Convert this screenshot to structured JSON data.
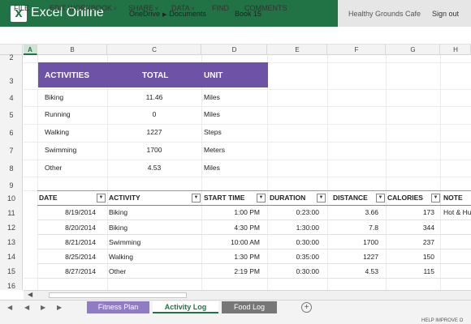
{
  "header": {
    "app_icon": "X",
    "app_title": "Excel Online",
    "breadcrumb": [
      "OneDrive",
      "Documents"
    ],
    "book_name": "Book 15",
    "account_name": "Healthy Grounds Cafe",
    "sign_out": "Sign out",
    "brand_color": "#217346"
  },
  "menu": {
    "file": "FILE",
    "edit": "EDIT WORKBOOK",
    "share": "SHARE",
    "data": "DATA",
    "find": "FIND",
    "comments": "COMMENTS"
  },
  "columns": [
    "A",
    "B",
    "C",
    "D",
    "E",
    "F",
    "G",
    "H"
  ],
  "rows": [
    "2",
    "3",
    "4",
    "5",
    "6",
    "7",
    "8",
    "9",
    "10",
    "11",
    "12",
    "13",
    "14",
    "15",
    "16"
  ],
  "summary": {
    "header_color": "#6d52a6",
    "headers": {
      "activities": "ACTIVITIES",
      "total": "TOTAL",
      "unit": "UNIT"
    },
    "items": [
      {
        "activity": "Biking",
        "total": "11.46",
        "unit": "Miles"
      },
      {
        "activity": "Running",
        "total": "0",
        "unit": "Miles"
      },
      {
        "activity": "Walking",
        "total": "1227",
        "unit": "Steps"
      },
      {
        "activity": "Swimming",
        "total": "1700",
        "unit": "Meters"
      },
      {
        "activity": "Other",
        "total": "4.53",
        "unit": "Miles"
      }
    ]
  },
  "log": {
    "headers": {
      "date": "DATE",
      "activity": "ACTIVITY",
      "start": "START TIME",
      "duration": "DURATION",
      "distance": "DISTANCE",
      "calories": "CALORIES",
      "note": "NOTE"
    },
    "rows": [
      {
        "date": "8/19/2014",
        "activity": "Biking",
        "start": "1:00 PM",
        "duration": "0:23:00",
        "distance": "3.66",
        "calories": "173",
        "note": "Hot & Hu"
      },
      {
        "date": "8/20/2014",
        "activity": "Biking",
        "start": "4:30 PM",
        "duration": "1:30:00",
        "distance": "7.8",
        "calories": "344",
        "note": ""
      },
      {
        "date": "8/21/2014",
        "activity": "Swimming",
        "start": "10:00 AM",
        "duration": "0:30:00",
        "distance": "1700",
        "calories": "237",
        "note": ""
      },
      {
        "date": "8/25/2014",
        "activity": "Walking",
        "start": "1:30 PM",
        "duration": "0:35:00",
        "distance": "1227",
        "calories": "150",
        "note": ""
      },
      {
        "date": "8/27/2014",
        "activity": "Other",
        "start": "2:19 PM",
        "duration": "0:30:00",
        "distance": "4.53",
        "calories": "115",
        "note": ""
      }
    ]
  },
  "tabs": {
    "fitness": "Fitness Plan",
    "activity": "Activity Log",
    "food": "Food Log",
    "add": "+"
  },
  "footer": {
    "help": "HELP IMPROVE O"
  }
}
